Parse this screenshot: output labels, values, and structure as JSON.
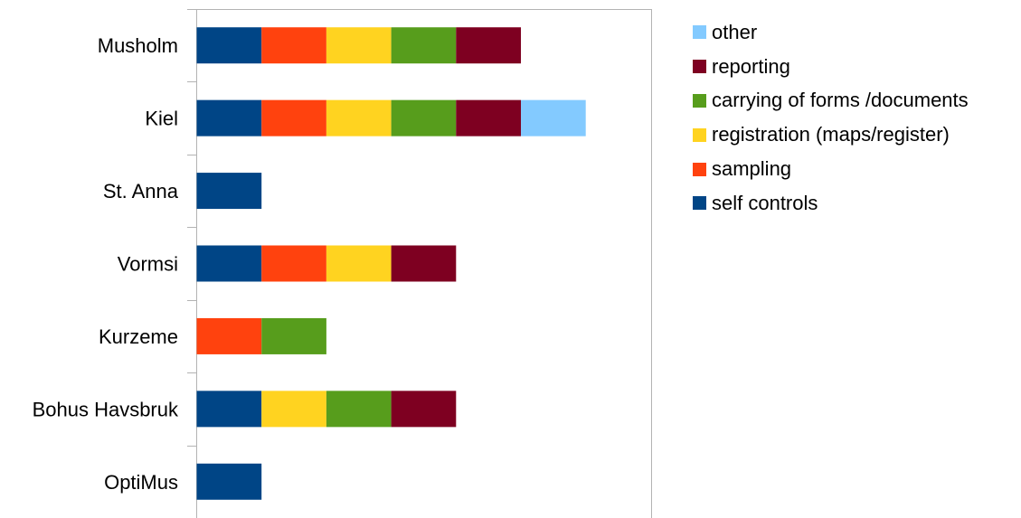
{
  "chart_data": {
    "type": "bar",
    "orientation": "horizontal",
    "stacked": true,
    "title": "",
    "xlabel": "",
    "ylabel": "",
    "xlim": [
      0,
      7
    ],
    "grid": false,
    "legend_position": "right",
    "categories": [
      "Musholm",
      "Kiel",
      "St. Anna",
      "Vormsi",
      "Kurzeme",
      "Bohus Havsbruk",
      "OptiMus"
    ],
    "series": [
      {
        "name": "self controls",
        "color": "#004586",
        "values": [
          1,
          1,
          1,
          1,
          0,
          1,
          1
        ]
      },
      {
        "name": "sampling",
        "color": "#ff420e",
        "values": [
          1,
          1,
          0,
          1,
          1,
          0,
          0
        ]
      },
      {
        "name": "registration (maps/register)",
        "color": "#ffd320",
        "values": [
          1,
          1,
          0,
          1,
          0,
          1,
          0
        ]
      },
      {
        "name": "carrying of forms /documents",
        "color": "#579d1c",
        "values": [
          1,
          1,
          0,
          0,
          1,
          1,
          0
        ]
      },
      {
        "name": "reporting",
        "color": "#7e0021",
        "values": [
          1,
          1,
          0,
          1,
          0,
          1,
          0
        ]
      },
      {
        "name": "other",
        "color": "#83caff",
        "values": [
          0,
          1,
          0,
          0,
          0,
          0,
          0
        ]
      }
    ]
  }
}
